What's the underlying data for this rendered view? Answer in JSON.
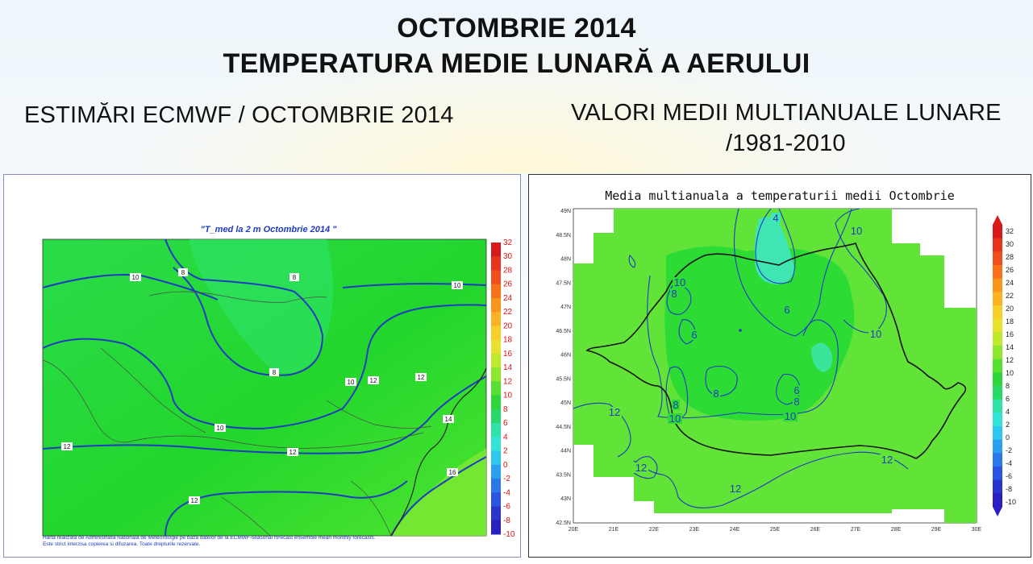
{
  "header": {
    "title_line1": "OCTOMBRIE 2014",
    "title_line2": "TEMPERATURA MEDIE LUNARĂ A AERULUI",
    "left_subtitle": "ESTIMĂRI ECMWF / OCTOMBRIE 2014",
    "right_subtitle_line1": "VALORI MEDII MULTIANUALE LUNARE",
    "right_subtitle_line2": "/1981-2010"
  },
  "left_map": {
    "title": "\"T_med la 2 m Octombrie 2014 \"",
    "colorbar_ticks": [
      "32",
      "30",
      "28",
      "26",
      "24",
      "22",
      "20",
      "18",
      "16",
      "14",
      "12",
      "10",
      "8",
      "6",
      "4",
      "2",
      "0",
      "-2",
      "-4",
      "-6",
      "-8",
      "-10"
    ],
    "contour_labels": [
      "10",
      "8",
      "8",
      "10",
      "8",
      "10",
      "12",
      "10",
      "12",
      "12",
      "14",
      "16",
      "12",
      "12"
    ],
    "footnote_line1": "Harta realizata de Administratia Nationala de Meteorologie pe baza datelor de la ECMWF-seasonal forecast ensemble mean monthly forecasts.",
    "footnote_line2": "Este strict interzisa copierea si difuzarea. Toate drepturile rezervate."
  },
  "right_map": {
    "title": "Media multianuala a temperaturii medii Octombrie",
    "lat_labels": [
      "49N",
      "48.5N",
      "48N",
      "47.5N",
      "47N",
      "46.5N",
      "46N",
      "45.5N",
      "45N",
      "44.5N",
      "44N",
      "43.5N",
      "43N",
      "42.5N"
    ],
    "lon_labels": [
      "20E",
      "21E",
      "22E",
      "23E",
      "24E",
      "25E",
      "26E",
      "27E",
      "28E",
      "29E",
      "30E"
    ],
    "colorbar_ticks": [
      "32",
      "30",
      "28",
      "26",
      "24",
      "22",
      "20",
      "18",
      "16",
      "14",
      "12",
      "10",
      "8",
      "6",
      "4",
      "2",
      "0",
      "-2",
      "-4",
      "-6",
      "-8",
      "-10"
    ],
    "contour_labels": [
      "4",
      "10",
      "10",
      "8",
      "6",
      "6",
      "10",
      "8",
      "8",
      "6",
      "8",
      "10",
      "12",
      "12",
      "12",
      "12",
      "10"
    ]
  },
  "colors": {
    "map_green": "#22dd2a",
    "map_light_green": "#66ee33",
    "cold_cyan": "#33eebb",
    "contour_blue": "#1f3bbf"
  }
}
